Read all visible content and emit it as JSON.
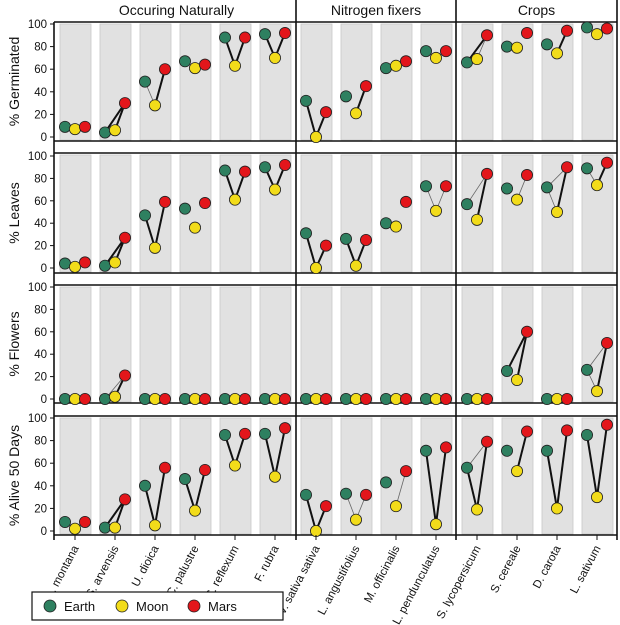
{
  "chart_data": {
    "type": "scatter",
    "groups": [
      {
        "title": "Occuring Naturally",
        "species": [
          "A. montana",
          "S. arvensis",
          "U. dioica",
          "C. palustre",
          "S. reflexum",
          "F. rubra"
        ]
      },
      {
        "title": "Nitrogen fixers",
        "species": [
          "V. sativa sativa",
          "L. angustifolius",
          "M. officinalis",
          "L. pendunculatus"
        ]
      },
      {
        "title": "Crops",
        "species": [
          "S. lycopersicum",
          "S. cereale",
          "D. carota",
          "L. sativum"
        ]
      }
    ],
    "series": [
      {
        "name": "Earth",
        "color": "#2e8060"
      },
      {
        "name": "Moon",
        "color": "#f2dc1a"
      },
      {
        "name": "Mars",
        "color": "#e3161b"
      }
    ],
    "ylim": [
      0,
      100
    ],
    "yticks": [
      "0",
      "20",
      "40",
      "60",
      "80",
      "100"
    ],
    "legend_position": "bottom-left",
    "panels": [
      {
        "ylabel": "%  Germinated",
        "values": [
          [
            9,
            7,
            9
          ],
          [
            4,
            6,
            30
          ],
          [
            49,
            28,
            60
          ],
          [
            67,
            61,
            64
          ],
          [
            88,
            63,
            88
          ],
          [
            91,
            70,
            92
          ],
          [
            32,
            0,
            22
          ],
          [
            36,
            21,
            45
          ],
          [
            61,
            63,
            67
          ],
          [
            76,
            70,
            76
          ],
          [
            66,
            69,
            90
          ],
          [
            80,
            79,
            92
          ],
          [
            82,
            74,
            94
          ],
          [
            97,
            91,
            96
          ]
        ],
        "links": [
          [],
          [
            [
              "Earth",
              "Mars",
              "strong"
            ],
            [
              "Moon",
              "Mars",
              "strong"
            ]
          ],
          [
            [
              "Earth",
              "Moon",
              "weak"
            ],
            [
              "Moon",
              "Mars",
              "strong"
            ]
          ],
          [],
          [
            [
              "Earth",
              "Moon",
              "strong"
            ],
            [
              "Moon",
              "Mars",
              "strong"
            ]
          ],
          [
            [
              "Earth",
              "Moon",
              "strong"
            ],
            [
              "Moon",
              "Mars",
              "strong"
            ]
          ],
          [
            [
              "Earth",
              "Moon",
              "strong"
            ],
            [
              "Moon",
              "Mars",
              "strong"
            ]
          ],
          [
            [
              "Moon",
              "Mars",
              "strong"
            ]
          ],
          [],
          [],
          [
            [
              "Earth",
              "Mars",
              "strong"
            ],
            [
              "Moon",
              "Mars",
              "weak"
            ]
          ],
          [],
          [
            [
              "Moon",
              "Mars",
              "strong"
            ]
          ],
          []
        ]
      },
      {
        "ylabel": "%  Leaves",
        "values": [
          [
            4,
            1,
            5
          ],
          [
            2,
            5,
            27
          ],
          [
            47,
            18,
            59
          ],
          [
            53,
            36,
            58
          ],
          [
            87,
            61,
            86
          ],
          [
            90,
            70,
            92
          ],
          [
            31,
            0,
            20
          ],
          [
            26,
            2,
            25
          ],
          [
            40,
            37,
            59
          ],
          [
            73,
            51,
            73
          ],
          [
            57,
            43,
            84
          ],
          [
            71,
            61,
            83
          ],
          [
            72,
            50,
            90
          ],
          [
            89,
            74,
            94
          ]
        ],
        "links": [
          [],
          [
            [
              "Earth",
              "Mars",
              "strong"
            ],
            [
              "Moon",
              "Mars",
              "strong"
            ]
          ],
          [
            [
              "Earth",
              "Moon",
              "strong"
            ],
            [
              "Moon",
              "Mars",
              "strong"
            ]
          ],
          [],
          [
            [
              "Earth",
              "Moon",
              "strong"
            ],
            [
              "Moon",
              "Mars",
              "strong"
            ]
          ],
          [
            [
              "Earth",
              "Moon",
              "strong"
            ],
            [
              "Moon",
              "Mars",
              "strong"
            ]
          ],
          [
            [
              "Earth",
              "Moon",
              "strong"
            ],
            [
              "Moon",
              "Mars",
              "strong"
            ]
          ],
          [
            [
              "Earth",
              "Moon",
              "strong"
            ],
            [
              "Moon",
              "Mars",
              "strong"
            ]
          ],
          [],
          [
            [
              "Earth",
              "Moon",
              "weak"
            ],
            [
              "Moon",
              "Mars",
              "weak"
            ]
          ],
          [
            [
              "Earth",
              "Mars",
              "weak"
            ],
            [
              "Moon",
              "Mars",
              "strong"
            ]
          ],
          [
            [
              "Moon",
              "Mars",
              "weak"
            ]
          ],
          [
            [
              "Earth",
              "Mars",
              "weak"
            ],
            [
              "Earth",
              "Moon",
              "weak"
            ],
            [
              "Moon",
              "Mars",
              "strong"
            ]
          ],
          [
            [
              "Earth",
              "Moon",
              "weak"
            ],
            [
              "Moon",
              "Mars",
              "strong"
            ]
          ]
        ]
      },
      {
        "ylabel": "%  Flowers",
        "values": [
          [
            0,
            0,
            0
          ],
          [
            0,
            2,
            21
          ],
          [
            0,
            0,
            0
          ],
          [
            0,
            0,
            0
          ],
          [
            0,
            0,
            0
          ],
          [
            0,
            0,
            0
          ],
          [
            0,
            0,
            0
          ],
          [
            0,
            0,
            0
          ],
          [
            0,
            0,
            0
          ],
          [
            0,
            0,
            0
          ],
          [
            0,
            0,
            0
          ],
          [
            25,
            17,
            60
          ],
          [
            0,
            0,
            0
          ],
          [
            26,
            7,
            50
          ]
        ],
        "links": [
          [],
          [
            [
              "Earth",
              "Mars",
              "weak"
            ],
            [
              "Moon",
              "Mars",
              "strong"
            ]
          ],
          [],
          [],
          [],
          [],
          [],
          [],
          [],
          [],
          [],
          [
            [
              "Earth",
              "Mars",
              "strong"
            ],
            [
              "Moon",
              "Mars",
              "strong"
            ]
          ],
          [],
          [
            [
              "Earth",
              "Mars",
              "weak"
            ],
            [
              "Earth",
              "Moon",
              "weak"
            ],
            [
              "Moon",
              "Mars",
              "strong"
            ]
          ]
        ]
      },
      {
        "ylabel": "%  Alive  50  Days",
        "values": [
          [
            8,
            2,
            8
          ],
          [
            3,
            3,
            28
          ],
          [
            40,
            5,
            56
          ],
          [
            46,
            18,
            54
          ],
          [
            85,
            58,
            86
          ],
          [
            86,
            48,
            91
          ],
          [
            32,
            0,
            22
          ],
          [
            33,
            10,
            32
          ],
          [
            43,
            22,
            53
          ],
          [
            71,
            6,
            74
          ],
          [
            56,
            19,
            79
          ],
          [
            71,
            53,
            88
          ],
          [
            71,
            20,
            89
          ],
          [
            85,
            30,
            94
          ]
        ],
        "links": [
          [],
          [
            [
              "Earth",
              "Mars",
              "strong"
            ],
            [
              "Moon",
              "Mars",
              "strong"
            ]
          ],
          [
            [
              "Earth",
              "Moon",
              "strong"
            ],
            [
              "Moon",
              "Mars",
              "strong"
            ]
          ],
          [
            [
              "Earth",
              "Moon",
              "strong"
            ],
            [
              "Moon",
              "Mars",
              "strong"
            ]
          ],
          [
            [
              "Earth",
              "Moon",
              "strong"
            ],
            [
              "Moon",
              "Mars",
              "strong"
            ]
          ],
          [
            [
              "Earth",
              "Moon",
              "strong"
            ],
            [
              "Moon",
              "Mars",
              "strong"
            ]
          ],
          [
            [
              "Earth",
              "Moon",
              "strong"
            ],
            [
              "Moon",
              "Mars",
              "strong"
            ]
          ],
          [
            [
              "Earth",
              "Moon",
              "weak"
            ],
            [
              "Moon",
              "Mars",
              "weak"
            ]
          ],
          [
            [
              "Moon",
              "Mars",
              "weak"
            ]
          ],
          [
            [
              "Earth",
              "Moon",
              "strong"
            ],
            [
              "Moon",
              "Mars",
              "strong"
            ]
          ],
          [
            [
              "Earth",
              "Mars",
              "weak"
            ],
            [
              "Earth",
              "Moon",
              "strong"
            ],
            [
              "Moon",
              "Mars",
              "strong"
            ]
          ],
          [
            [
              "Moon",
              "Mars",
              "strong"
            ]
          ],
          [
            [
              "Earth",
              "Moon",
              "strong"
            ],
            [
              "Moon",
              "Mars",
              "strong"
            ]
          ],
          [
            [
              "Earth",
              "Moon",
              "strong"
            ],
            [
              "Moon",
              "Mars",
              "strong"
            ]
          ]
        ]
      }
    ]
  }
}
